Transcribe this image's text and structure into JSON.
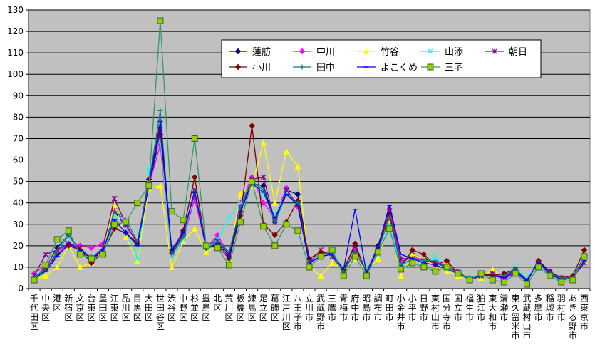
{
  "chart_data": {
    "type": "line",
    "title": "",
    "xlabel": "",
    "ylabel": "",
    "ylim": [
      0,
      130
    ],
    "yticks": [
      0,
      10,
      20,
      30,
      40,
      50,
      60,
      70,
      80,
      90,
      100,
      110,
      120,
      130
    ],
    "grid": true,
    "legend_position": "top-right",
    "plot_background": "#c0c0c0",
    "categories": [
      "千代田区",
      "中央区",
      "港区",
      "新宿区",
      "文京区",
      "台東区",
      "墨田区",
      "江東区",
      "品川区",
      "目黒区",
      "大田区",
      "世田谷区",
      "渋谷区",
      "中野区",
      "杉並区",
      "豊島区",
      "北区",
      "荒川区",
      "板橋区",
      "練馬区",
      "足立区",
      "葛飾区",
      "江戸川区",
      "八王子市",
      "立川市",
      "武蔵野市",
      "三鷹市",
      "青梅市",
      "府中市",
      "昭島市",
      "調布市",
      "町田市",
      "小金井市",
      "小平市",
      "日野市",
      "東村山市",
      "国分寺市",
      "国立市",
      "福生市",
      "狛江市",
      "東大和市",
      "清瀬市",
      "東久留米市",
      "武蔵村山市",
      "多摩市",
      "稲城市",
      "羽村市",
      "あきる野市",
      "西東京市"
    ],
    "series": [
      {
        "name": "蓮舫",
        "color": "#000080",
        "marker": "diamond",
        "values": [
          5,
          10,
          19,
          25,
          18,
          14,
          17,
          36,
          29,
          22,
          47,
          72,
          17,
          25,
          45,
          20,
          23,
          16,
          38,
          49,
          48,
          31,
          46,
          44,
          14,
          17,
          16,
          9,
          20,
          7,
          20,
          37,
          12,
          16,
          14,
          12,
          10,
          7,
          4,
          6,
          6,
          5,
          7,
          4,
          13,
          8,
          5,
          5,
          15
        ]
      },
      {
        "name": "中川",
        "color": "#ff00ff",
        "marker": "diamond",
        "values": [
          7,
          11,
          17,
          21,
          20,
          19,
          21,
          37,
          29,
          22,
          48,
          67,
          16,
          23,
          42,
          19,
          25,
          16,
          40,
          52,
          40,
          33,
          47,
          38,
          12,
          16,
          16,
          8,
          18,
          8,
          19,
          37,
          12,
          15,
          13,
          12,
          10,
          7,
          5,
          6,
          7,
          4,
          8,
          4,
          12,
          7,
          4,
          5,
          14
        ]
      },
      {
        "name": "竹谷",
        "color": "#ffff00",
        "marker": "triangle",
        "values": [
          4,
          6,
          10,
          20,
          10,
          12,
          18,
          39,
          24,
          13,
          47,
          48,
          10,
          22,
          28,
          17,
          20,
          14,
          44,
          48,
          68,
          40,
          64,
          57,
          10,
          6,
          12,
          9,
          14,
          8,
          14,
          31,
          6,
          16,
          14,
          10,
          8,
          6,
          4,
          5,
          9,
          5,
          9,
          4,
          12,
          7,
          3,
          4,
          13
        ]
      },
      {
        "name": "山添",
        "color": "#00ffff",
        "marker": "x",
        "values": [
          6,
          9,
          18,
          25,
          16,
          14,
          16,
          34,
          28,
          14,
          55,
          70,
          15,
          23,
          46,
          19,
          23,
          33,
          40,
          50,
          44,
          34,
          45,
          40,
          13,
          15,
          18,
          8,
          17,
          9,
          16,
          30,
          10,
          14,
          12,
          15,
          9,
          7,
          5,
          6,
          7,
          6,
          10,
          5,
          12,
          6,
          4,
          5,
          14
        ]
      },
      {
        "name": "朝日",
        "color": "#800080",
        "marker": "star",
        "values": [
          6,
          16,
          18,
          21,
          19,
          14,
          19,
          42,
          30,
          21,
          50,
          73,
          17,
          25,
          46,
          20,
          22,
          16,
          38,
          51,
          52,
          31,
          46,
          39,
          12,
          18,
          15,
          8,
          17,
          8,
          19,
          38,
          14,
          14,
          13,
          12,
          10,
          8,
          4,
          6,
          7,
          5,
          9,
          4,
          12,
          8,
          5,
          5,
          12
        ]
      },
      {
        "name": "小川",
        "color": "#800000",
        "marker": "diamond",
        "values": [
          4,
          9,
          16,
          20,
          18,
          12,
          17,
          28,
          26,
          21,
          51,
          75,
          17,
          27,
          52,
          19,
          20,
          14,
          34,
          76,
          30,
          25,
          31,
          41,
          14,
          17,
          17,
          8,
          21,
          7,
          19,
          35,
          10,
          18,
          16,
          11,
          13,
          7,
          4,
          7,
          6,
          7,
          9,
          3,
          13,
          6,
          5,
          6,
          18
        ]
      },
      {
        "name": "田中",
        "color": "#008080",
        "marker": "plus",
        "values": [
          5,
          9,
          17,
          25,
          17,
          15,
          17,
          36,
          32,
          22,
          49,
          83,
          16,
          24,
          46,
          20,
          22,
          17,
          38,
          50,
          46,
          31,
          44,
          40,
          12,
          15,
          16,
          8,
          17,
          8,
          18,
          33,
          11,
          14,
          13,
          13,
          10,
          7,
          5,
          6,
          6,
          6,
          9,
          4,
          12,
          7,
          5,
          5,
          13
        ]
      },
      {
        "name": "よこくめ",
        "color": "#0000ff",
        "marker": "dash",
        "values": [
          5,
          8,
          15,
          21,
          18,
          14,
          18,
          32,
          26,
          20,
          48,
          78,
          18,
          26,
          45,
          19,
          21,
          15,
          36,
          49,
          45,
          33,
          44,
          39,
          12,
          15,
          16,
          9,
          37,
          7,
          19,
          39,
          16,
          14,
          12,
          11,
          9,
          7,
          4,
          6,
          6,
          5,
          8,
          4,
          12,
          7,
          4,
          5,
          13
        ]
      },
      {
        "name": "三宅",
        "color": "#339966",
        "marker": "square",
        "values": [
          4,
          11,
          23,
          27,
          16,
          14,
          16,
          30,
          31,
          40,
          48,
          125,
          36,
          32,
          70,
          20,
          19,
          11,
          31,
          50,
          29,
          20,
          30,
          27,
          10,
          15,
          18,
          6,
          15,
          6,
          17,
          28,
          9,
          12,
          10,
          8,
          10,
          7,
          4,
          7,
          4,
          3,
          7,
          2,
          10,
          6,
          3,
          4,
          15
        ]
      }
    ]
  }
}
